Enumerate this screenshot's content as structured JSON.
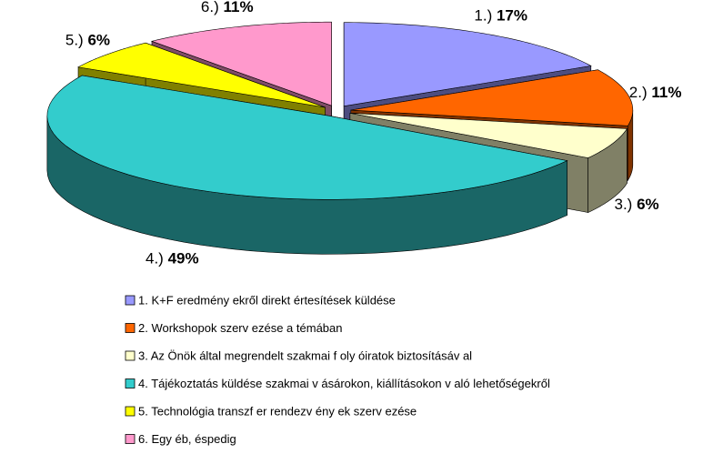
{
  "chart_data": {
    "type": "pie3d",
    "labels": [
      "1.)",
      "2.)",
      "3.)",
      "4.)",
      "5.)",
      "6.)"
    ],
    "categories": [
      "1. K+F eredmény ekről direkt értesítések küldése",
      "2. Workshopok szerv ezése a témában",
      "3. Az Önök által megrendelt szakmai f oly óiratok biztosításáv al",
      "4. Tájékoztatás küldése szakmai v ásárokon, kiállításokon v aló lehetőségekről",
      "5. Technológia transzf er rendezv ény ek szerv ezése",
      "6. Egy éb, éspedig"
    ],
    "values": [
      17,
      11,
      6,
      49,
      6,
      11
    ],
    "value_labels": [
      "17%",
      "11%",
      "6%",
      "49%",
      "6%",
      "11%"
    ],
    "colors": [
      "#9999ff",
      "#ff6600",
      "#ffffcc",
      "#33cccc",
      "#ffff00",
      "#ff99cc"
    ],
    "legend": "bottom"
  }
}
